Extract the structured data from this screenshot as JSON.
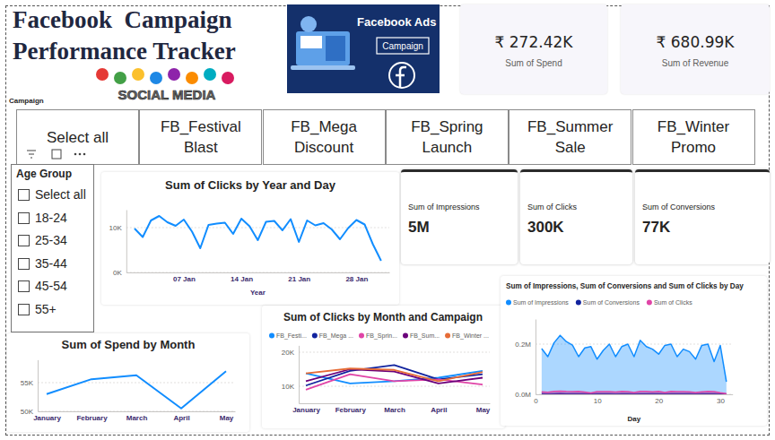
{
  "header": {
    "title_lines": [
      "Facebook  Campaign",
      "Performance Tracker"
    ],
    "image_texts": {
      "banner_title": "Facebook Ads",
      "banner_tag": "Campaign",
      "social": "SOCIAL MEDIA"
    }
  },
  "kpi_cards": [
    {
      "value": "₹ 272.42K",
      "label": "Sum of Spend"
    },
    {
      "value": "₹ 680.99K",
      "label": "Sum of Revenue"
    },
    {
      "value": "5M",
      "label": "Sum of Impressions"
    },
    {
      "value": "300K",
      "label": "Sum of Clicks"
    },
    {
      "value": "77K",
      "label": "Sum of Conversions"
    }
  ],
  "campaign_slicer": {
    "title": "Campaign",
    "options": [
      "Select all",
      "FB_Festival Blast",
      "FB_Mega Discount",
      "FB_Spring Launch",
      "FB_Summer Sale",
      "FB_Winter Promo"
    ]
  },
  "age_slicer": {
    "title": "Age Group",
    "options": [
      "Select all",
      "18-24",
      "25-34",
      "35-44",
      "45-54",
      "55+"
    ]
  },
  "chart_data": [
    {
      "type": "line",
      "title": "Sum of Clicks by Year and Day",
      "x_label": "Year",
      "x": [
        1,
        2,
        3,
        4,
        5,
        6,
        7,
        8,
        9,
        10,
        11,
        12,
        13,
        14,
        15,
        16,
        17,
        18,
        19,
        20,
        21,
        22,
        23,
        24,
        25,
        26,
        27,
        28,
        29,
        30,
        31
      ],
      "values": [
        9800,
        7900,
        11600,
        12600,
        11200,
        10400,
        11800,
        9100,
        5400,
        10600,
        10900,
        11100,
        8600,
        12000,
        10300,
        7200,
        11300,
        11500,
        9400,
        11900,
        6800,
        11600,
        10500,
        11000,
        9600,
        7400,
        9900,
        11700,
        10700,
        6300,
        2600
      ],
      "color": "#118DFF",
      "xlim": [
        0,
        32
      ],
      "xticks": [
        {
          "value": 7,
          "label": "07 Jan"
        },
        {
          "value": 14,
          "label": "14 Jan"
        },
        {
          "value": 21,
          "label": "21 Jan"
        },
        {
          "value": 28,
          "label": "28 Jan"
        }
      ],
      "ylim": [
        0,
        14000
      ],
      "yticks": [
        {
          "value": 0,
          "label": "0K"
        },
        {
          "value": 10000,
          "label": "10K"
        }
      ],
      "grid": true
    },
    {
      "type": "line",
      "title": "Sum of Spend by Month",
      "categories": [
        "January",
        "February",
        "March",
        "April",
        "May"
      ],
      "values": [
        53000,
        55600,
        56300,
        50500,
        57000
      ],
      "color": "#118DFF",
      "ylim": [
        50000,
        59000
      ],
      "yticks": [
        {
          "value": 50000,
          "label": "50K"
        },
        {
          "value": 55000,
          "label": "55K"
        }
      ],
      "grid": true
    },
    {
      "type": "line",
      "title": "Sum of Clicks by Month and Campaign",
      "categories": [
        "January",
        "February",
        "March",
        "April",
        "May"
      ],
      "series": [
        {
          "name": "FB_Festi...",
          "color": "#118DFF",
          "values": [
            13800,
            10800,
            11500,
            12500,
            14500
          ]
        },
        {
          "name": "FB_Mega ...",
          "color": "#12239E",
          "values": [
            10200,
            14500,
            16200,
            12000,
            13500
          ]
        },
        {
          "name": "FB_Sprin...",
          "color": "#E044A7",
          "values": [
            9000,
            13500,
            11500,
            12000,
            10500
          ]
        },
        {
          "name": "FB_Sum...",
          "color": "#6B007B",
          "values": [
            11500,
            15000,
            14300,
            10800,
            12500
          ]
        },
        {
          "name": "FB_Winter ...",
          "color": "#E66C37",
          "values": [
            13800,
            15200,
            14800,
            11500,
            14200
          ]
        }
      ],
      "legend": "top",
      "ylim": [
        5000,
        22000
      ],
      "yticks": [
        {
          "value": 10000,
          "label": "10K"
        },
        {
          "value": 20000,
          "label": "20K"
        }
      ],
      "grid": true
    },
    {
      "type": "area",
      "title": "Sum of Impressions, Sum of Conversions and Sum of Clicks by Day",
      "x_label": "Day",
      "x": [
        1,
        2,
        3,
        4,
        5,
        6,
        7,
        8,
        9,
        10,
        11,
        12,
        13,
        14,
        15,
        16,
        17,
        18,
        19,
        20,
        21,
        22,
        23,
        24,
        25,
        26,
        27,
        28,
        29,
        30,
        31
      ],
      "series": [
        {
          "name": "Sum of Impressions",
          "color": "#118DFF",
          "values": [
            182000,
            150000,
            205000,
            235000,
            210000,
            196000,
            150000,
            185000,
            190000,
            140000,
            175000,
            200000,
            150000,
            190000,
            200000,
            150000,
            215000,
            190000,
            180000,
            160000,
            195000,
            200000,
            150000,
            180000,
            170000,
            140000,
            195000,
            200000,
            130000,
            195000,
            50000
          ]
        },
        {
          "name": "Sum of Conversions",
          "color": "#12239E",
          "values": [
            2500,
            2100,
            3000,
            3300,
            2900,
            2700,
            3100,
            2400,
            1400,
            2800,
            2800,
            2900,
            2200,
            3100,
            2700,
            1900,
            2900,
            3000,
            2400,
            3100,
            1800,
            3000,
            2700,
            2900,
            2500,
            1900,
            2600,
            3000,
            2800,
            1600,
            700
          ]
        },
        {
          "name": "Sum of Clicks",
          "color": "#E044A7",
          "values": [
            9800,
            7900,
            11600,
            12600,
            11200,
            10400,
            11800,
            9100,
            5400,
            10600,
            10900,
            11100,
            8600,
            12000,
            10300,
            7200,
            11300,
            11500,
            9400,
            11900,
            6800,
            11600,
            10500,
            11000,
            9600,
            7400,
            9900,
            11700,
            10700,
            6300,
            2600
          ]
        }
      ],
      "legend": "top",
      "xlim": [
        0,
        32
      ],
      "xticks": [
        0,
        10,
        20,
        30
      ],
      "ylim": [
        0,
        300000
      ],
      "yticks": [
        {
          "value": 0,
          "label": "0.0M"
        },
        {
          "value": 200000,
          "label": "0.2M"
        }
      ],
      "grid": true
    }
  ]
}
